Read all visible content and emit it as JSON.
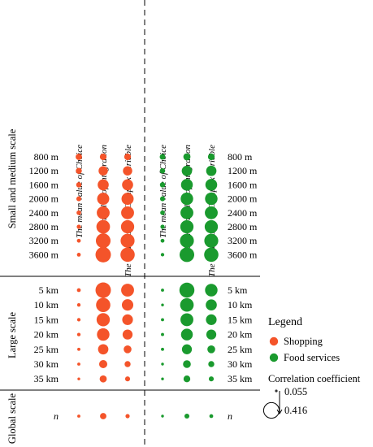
{
  "chart_data": {
    "type": "bubble-matrix",
    "columns": [
      "The mean value of Choice",
      "The mean value of Integration",
      "The mean value of Complex Variable",
      "The mean value of Choice",
      "The mean value of Integration",
      "The mean value of Complex Variable"
    ],
    "series": [
      {
        "name": "Shopping",
        "color": "#f4542a",
        "columns": [
          0,
          1,
          2
        ]
      },
      {
        "name": "Food services",
        "color": "#1a9a2e",
        "columns": [
          3,
          4,
          5
        ]
      }
    ],
    "groups": [
      {
        "name": "Small and medium scale",
        "rows": [
          {
            "label": "800 m",
            "values": [
              0.16,
              0.17,
              0.17,
              0.14,
              0.18,
              0.17
            ]
          },
          {
            "label": "1200 m",
            "values": [
              0.15,
              0.24,
              0.24,
              0.13,
              0.27,
              0.27
            ]
          },
          {
            "label": "1600 m",
            "values": [
              0.13,
              0.29,
              0.29,
              0.13,
              0.31,
              0.31
            ]
          },
          {
            "label": "2000 m",
            "values": [
              0.12,
              0.32,
              0.32,
              0.12,
              0.33,
              0.33
            ]
          },
          {
            "label": "2400 m",
            "values": [
              0.11,
              0.34,
              0.34,
              0.11,
              0.34,
              0.34
            ]
          },
          {
            "label": "2800 m",
            "values": [
              0.1,
              0.36,
              0.35,
              0.1,
              0.35,
              0.35
            ]
          },
          {
            "label": "3200 m",
            "values": [
              0.09,
              0.39,
              0.37,
              0.09,
              0.37,
              0.37
            ]
          },
          {
            "label": "3600 m",
            "values": [
              0.09,
              0.41,
              0.38,
              0.08,
              0.39,
              0.38
            ]
          }
        ]
      },
      {
        "name": "Large scale",
        "rows": [
          {
            "label": "5 km",
            "values": [
              0.09,
              0.41,
              0.34,
              0.07,
              0.4,
              0.33
            ]
          },
          {
            "label": "10 km",
            "values": [
              0.08,
              0.38,
              0.3,
              0.06,
              0.36,
              0.29
            ]
          },
          {
            "label": "15 km",
            "values": [
              0.08,
              0.35,
              0.28,
              0.07,
              0.34,
              0.28
            ]
          },
          {
            "label": "20 km",
            "values": [
              0.08,
              0.33,
              0.26,
              0.07,
              0.31,
              0.26
            ]
          },
          {
            "label": "25 km",
            "values": [
              0.07,
              0.27,
              0.2,
              0.07,
              0.26,
              0.2
            ]
          },
          {
            "label": "30 km",
            "values": [
              0.07,
              0.21,
              0.15,
              0.06,
              0.2,
              0.15
            ]
          },
          {
            "label": "35 km",
            "values": [
              0.06,
              0.18,
              0.12,
              0.06,
              0.17,
              0.12
            ]
          }
        ]
      },
      {
        "name": "Global scale",
        "rows": [
          {
            "label": "n",
            "values": [
              0.07,
              0.16,
              0.1,
              0.06,
              0.12,
              0.09
            ]
          }
        ]
      }
    ],
    "legend": {
      "title": "Legend",
      "size_title": "Correlation coefficient",
      "size_min": 0.055,
      "size_max": 0.416,
      "size_min_label": "0.055",
      "size_max_label": "0.416"
    },
    "value_range": [
      0.055,
      0.416
    ]
  }
}
